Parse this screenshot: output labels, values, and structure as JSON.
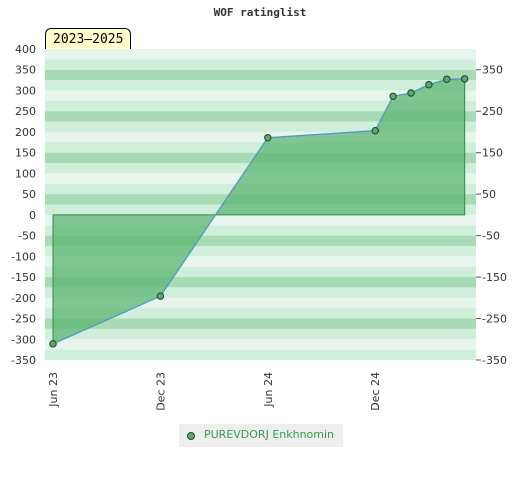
{
  "chart_data": {
    "type": "area",
    "title": "WOF ratinglist",
    "season_label": "2023–2025",
    "x_ticks": [
      "Jun 23",
      "Dec 23",
      "Jun 24",
      "Dec 24"
    ],
    "y_ticks_left": [
      "400",
      "350",
      "300",
      "250",
      "200",
      "150",
      "100",
      "50",
      "0",
      "-50",
      "-100",
      "-150",
      "-200",
      "-250",
      "-300",
      "-350"
    ],
    "y_ticks_right": [
      "350",
      "250",
      "150",
      "50",
      "-50",
      "-150",
      "-250",
      "-350"
    ],
    "ylim": [
      -350,
      400
    ],
    "grid": true,
    "legend_placement": "bottom",
    "series": [
      {
        "name": "PUREVDORJ Enkhnomin",
        "x": [
          "2023-06",
          "2023-12",
          "2024-06",
          "2024-12",
          "2025-01",
          "2025-02",
          "2025-03",
          "2025-04",
          "2025-05"
        ],
        "values": [
          -311,
          -196,
          186,
          203,
          286,
          294,
          314,
          327,
          328
        ]
      }
    ],
    "colors": {
      "area": "#5cb572",
      "line": "#5599cc",
      "marker": "#5aaa6e",
      "band_light": "#e8f5ec",
      "band_dark": "#a8dbb4",
      "legend_text": "#3a9a4f"
    }
  }
}
